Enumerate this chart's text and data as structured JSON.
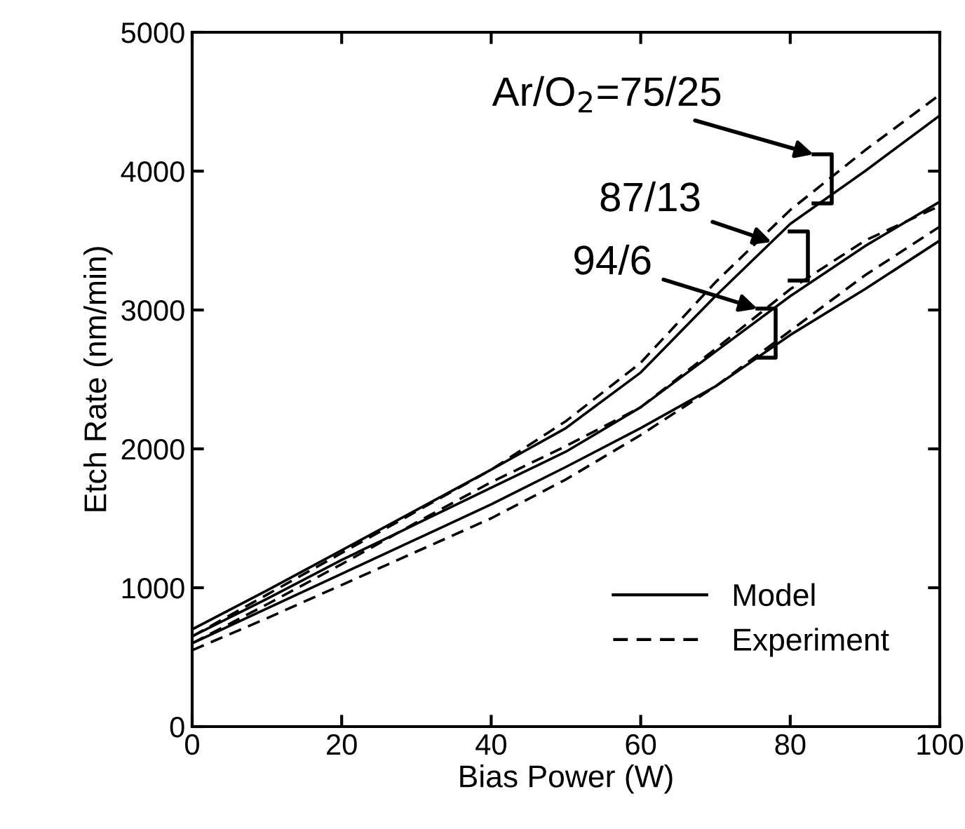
{
  "chart_data": {
    "type": "line",
    "xlabel": "Bias Power (W)",
    "ylabel": "Etch Rate (nm/min)",
    "x": [
      0,
      10,
      20,
      30,
      40,
      50,
      60,
      70,
      80,
      90,
      100
    ],
    "xlim": [
      0,
      100
    ],
    "xticks": [
      0,
      20,
      40,
      60,
      80,
      100
    ],
    "ylim": [
      0,
      5000
    ],
    "yticks": [
      0,
      1000,
      2000,
      3000,
      4000,
      5000
    ],
    "grid": false,
    "legend": "bottom right",
    "marker": "none",
    "series": [
      {
        "name": "Model",
        "color": "#000000",
        "line_style": "solid",
        "values": [
          700,
          980,
          1270,
          1560,
          1850,
          2150,
          2550,
          3100,
          3620,
          4000,
          4400
        ]
      },
      {
        "name": "Experiment",
        "color": "#000000",
        "line_style": "dashed",
        "values": [
          650,
          950,
          1250,
          1550,
          1850,
          2200,
          2620,
          3200,
          3720,
          4150,
          4550
        ]
      },
      {
        "color": "#000000",
        "line_style": "solid",
        "values": [
          650,
          920,
          1200,
          1460,
          1720,
          1980,
          2300,
          2700,
          3100,
          3460,
          3780
        ]
      },
      {
        "color": "#000000",
        "line_style": "dashed",
        "values": [
          600,
          880,
          1170,
          1470,
          1760,
          2020,
          2300,
          2720,
          3150,
          3500,
          3750
        ]
      },
      {
        "color": "#000000",
        "line_style": "solid",
        "values": [
          600,
          850,
          1100,
          1350,
          1600,
          1870,
          2150,
          2450,
          2820,
          3150,
          3500
        ]
      },
      {
        "color": "#000000",
        "line_style": "dashed",
        "values": [
          550,
          780,
          1020,
          1260,
          1500,
          1780,
          2100,
          2450,
          2850,
          3250,
          3600
        ]
      }
    ],
    "annotations": [
      "Ar/O$_{2}$=75/25",
      {
        "text": "87/13",
        "x": 77.5,
        "y": 3490
      },
      "94/6"
    ]
  }
}
